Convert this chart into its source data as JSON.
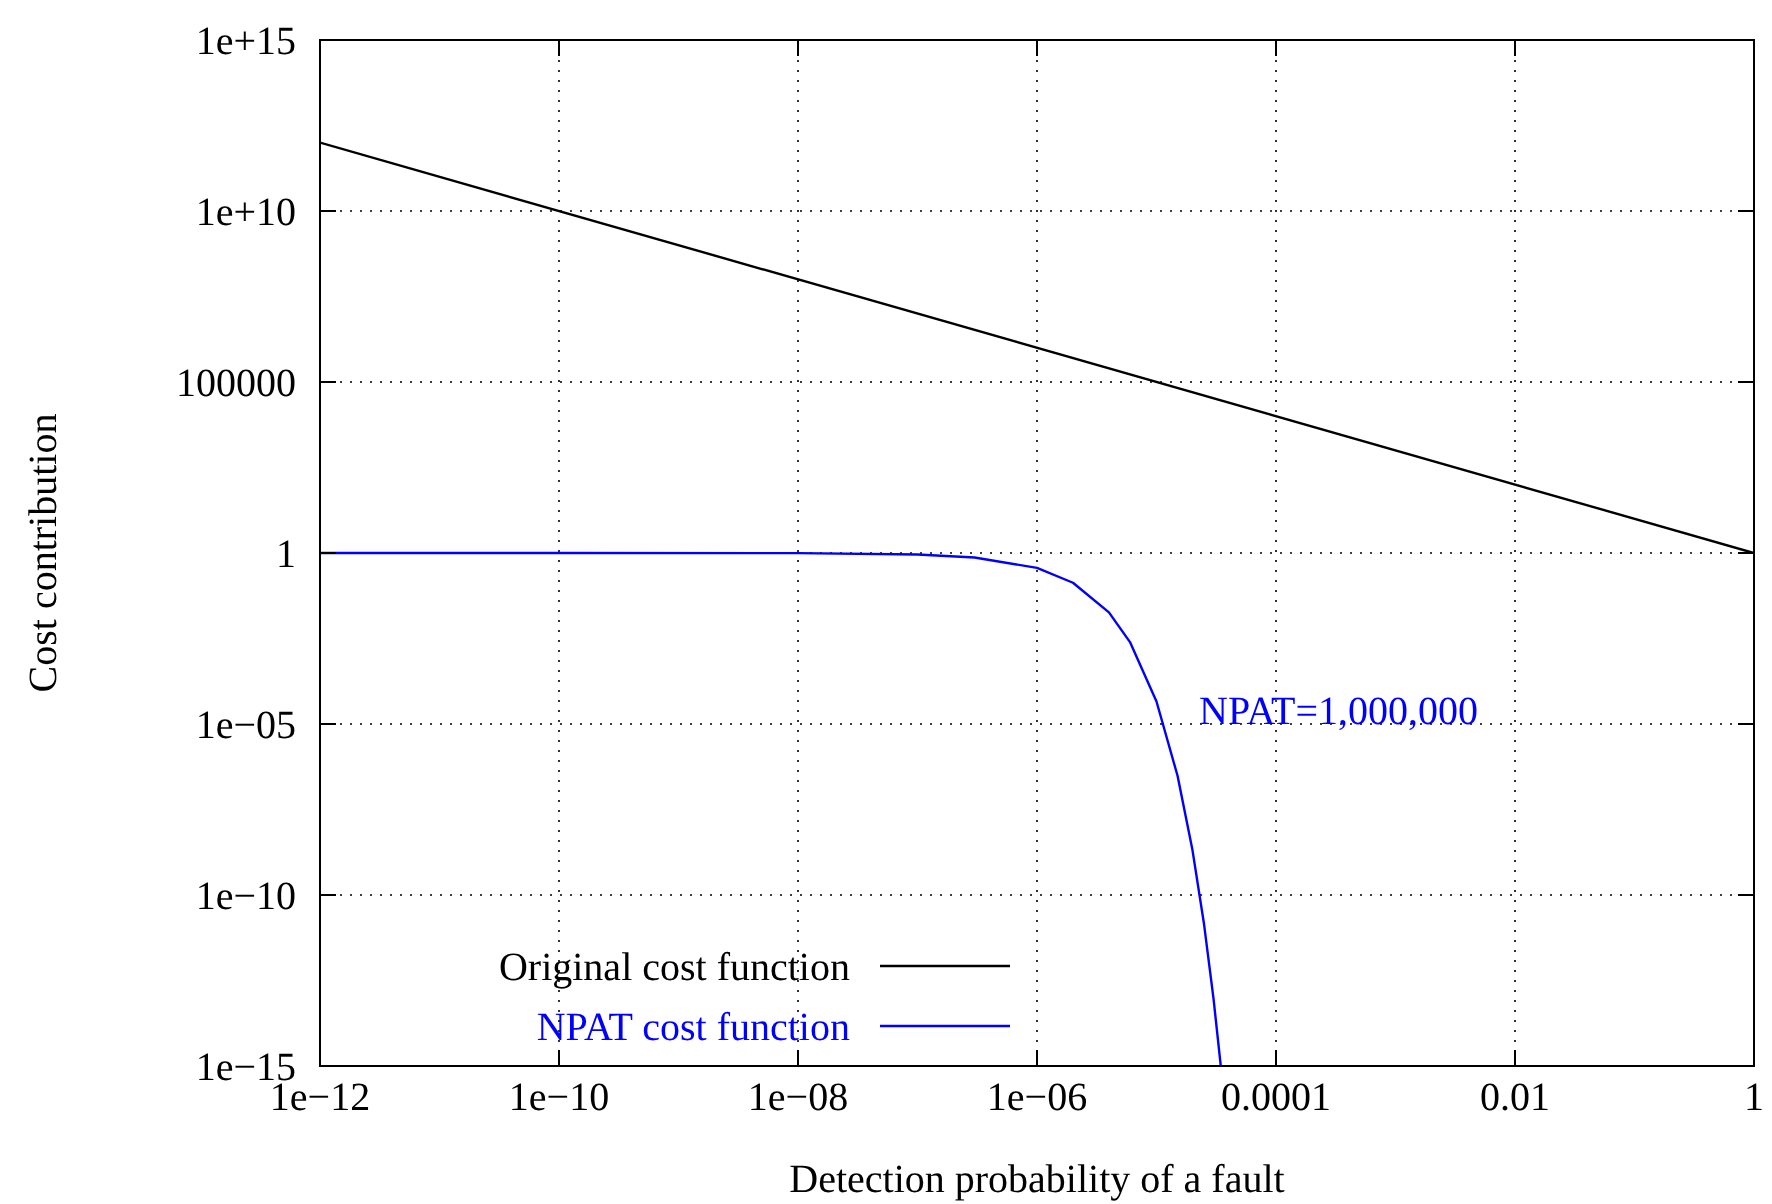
{
  "chart_data": {
    "type": "line",
    "xlabel": "Detection probability of a fault",
    "ylabel": "Cost contribution",
    "log": "xy",
    "xlim": [
      1e-12,
      1
    ],
    "ylim": [
      1e-15,
      1000000000000000.0
    ],
    "xticks": [
      {
        "value": 1e-12,
        "label": "1e−12"
      },
      {
        "value": 1e-10,
        "label": "1e−10"
      },
      {
        "value": 1e-08,
        "label": "1e−08"
      },
      {
        "value": 1e-06,
        "label": "1e−06"
      },
      {
        "value": 0.0001,
        "label": "0.0001"
      },
      {
        "value": 0.01,
        "label": "0.01"
      },
      1
    ],
    "yticks": [
      {
        "value": 1e-15,
        "label": "1e−15"
      },
      {
        "value": 1e-10,
        "label": "1e−10"
      },
      {
        "value": 1e-05,
        "label": "1e−05"
      },
      1,
      100000,
      {
        "value": 10000000000.0,
        "label": "1e+10"
      },
      {
        "value": 1000000000000000.0,
        "label": "1e+15"
      }
    ],
    "grid": true,
    "legend": "bottom left",
    "line_style": "solid",
    "series": [
      {
        "name": "Original cost function",
        "color": "#000000",
        "x": [
          1e-12,
          1
        ],
        "values": [
          1000000000000.0,
          1
        ]
      },
      {
        "name": "NPAT cost function",
        "color": "#0000ff",
        "x": [
          1e-12,
          1e-10,
          1e-08,
          1e-07,
          3e-07,
          1e-06,
          2e-06,
          4e-06,
          6e-06,
          1e-05,
          1.5e-05,
          2e-05,
          2.5e-05,
          3e-05,
          3.45e-05
        ],
        "values": [
          1,
          0.9999,
          0.99,
          0.905,
          0.741,
          0.368,
          0.135,
          0.0183,
          0.00248,
          4.54e-05,
          3.06e-07,
          2.06e-09,
          1.39e-11,
          9.36e-14,
          1e-15
        ]
      }
    ],
    "annotations": [
      "NPAT=1,000,000"
    ]
  }
}
